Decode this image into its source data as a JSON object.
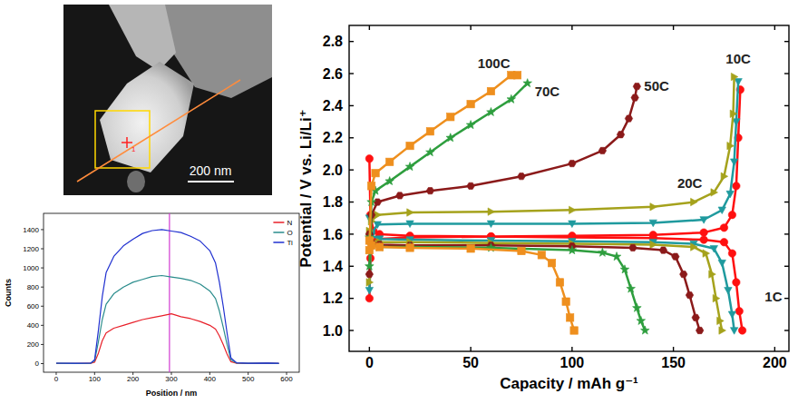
{
  "image": {
    "scale_bar": "200 nm",
    "marker": "1"
  },
  "chart_data": [
    {
      "type": "line",
      "x_label": "Position / nm",
      "y_label": "Counts",
      "xlim": [
        -33,
        633
      ],
      "ylim": [
        -90,
        1570
      ],
      "xticks": [
        0,
        100,
        200,
        300,
        400,
        500,
        600
      ],
      "yticks": [
        0,
        200,
        400,
        600,
        800,
        1000,
        1200,
        1400
      ],
      "legend": "top-right",
      "cursor": 295,
      "series": [
        {
          "name": "N",
          "color": "#e8202a",
          "line_style": "solid",
          "x": [
            0,
            50,
            90,
            100,
            110,
            120,
            130,
            150,
            175,
            200,
            225,
            250,
            275,
            300,
            325,
            350,
            375,
            400,
            415,
            425,
            435,
            445,
            455,
            470,
            500,
            550,
            580
          ],
          "values": [
            2,
            1,
            3,
            15,
            110,
            240,
            320,
            370,
            400,
            430,
            460,
            480,
            500,
            520,
            490,
            470,
            440,
            400,
            360,
            290,
            200,
            100,
            20,
            3,
            2,
            3,
            1
          ]
        },
        {
          "name": "O",
          "color": "#2a8c8c",
          "line_style": "solid",
          "x": [
            0,
            50,
            90,
            100,
            110,
            120,
            130,
            150,
            175,
            200,
            225,
            250,
            275,
            300,
            325,
            350,
            375,
            400,
            415,
            425,
            435,
            445,
            455,
            470,
            500,
            550,
            580
          ],
          "values": [
            3,
            2,
            4,
            30,
            230,
            460,
            620,
            730,
            800,
            850,
            880,
            910,
            920,
            905,
            890,
            870,
            830,
            760,
            680,
            550,
            380,
            200,
            40,
            5,
            3,
            4,
            2
          ]
        },
        {
          "name": "Ti",
          "color": "#2030d0",
          "line_style": "solid",
          "x": [
            0,
            50,
            90,
            100,
            110,
            120,
            130,
            150,
            175,
            200,
            225,
            250,
            275,
            300,
            325,
            350,
            375,
            400,
            415,
            425,
            435,
            445,
            455,
            470,
            500,
            550,
            580
          ],
          "values": [
            5,
            3,
            6,
            40,
            350,
            700,
            950,
            1120,
            1230,
            1300,
            1360,
            1390,
            1400,
            1385,
            1370,
            1330,
            1280,
            1180,
            1050,
            850,
            600,
            320,
            60,
            8,
            4,
            6,
            3
          ]
        }
      ]
    },
    {
      "type": "line",
      "x_label": "Capacity / mAh g⁻¹",
      "y_label": "Potential / V vs. Li/Li⁺",
      "xlim": [
        -10,
        207
      ],
      "ylim": [
        0.87,
        2.9
      ],
      "xticks": [
        0,
        50,
        100,
        150,
        200
      ],
      "yticks": [
        {
          "value": 1,
          "label": "1.0"
        },
        {
          "value": 1.2,
          "label": "1.2"
        },
        {
          "value": 1.4,
          "label": "1.4"
        },
        {
          "value": 1.6,
          "label": "1.6"
        },
        {
          "value": 1.8,
          "label": "1.8"
        },
        {
          "value": 2,
          "label": "2.0"
        },
        {
          "value": 2.2,
          "label": "2.2"
        },
        {
          "value": 2.4,
          "label": "2.4"
        },
        {
          "value": 2.6,
          "label": "2.6"
        },
        {
          "value": 2.8,
          "label": "2.8"
        }
      ],
      "series": [
        {
          "name": "1C",
          "color": "#ff1010",
          "marker": "circle",
          "x": [
            0,
            0.5,
            2,
            5,
            20,
            60,
            100,
            140,
            165,
            175,
            179,
            181,
            182.5,
            184,
            null,
            0,
            0.5,
            1.5,
            4,
            20,
            60,
            100,
            140,
            165,
            175,
            179,
            181,
            182,
            183
          ],
          "values": [
            2.07,
            1.72,
            1.62,
            1.6,
            1.59,
            1.585,
            1.58,
            1.575,
            1.565,
            1.55,
            1.48,
            1.3,
            1.12,
            1.0,
            null,
            1.2,
            1.45,
            1.54,
            1.57,
            1.58,
            1.585,
            1.59,
            1.595,
            1.61,
            1.64,
            1.72,
            1.9,
            2.2,
            2.5
          ]
        },
        {
          "name": "10C",
          "color": "#1f9a9e",
          "marker": "triangle-down",
          "x": [
            0,
            1,
            5,
            20,
            60,
            100,
            140,
            160,
            170,
            174,
            177,
            179,
            180,
            null,
            0,
            1,
            4,
            20,
            60,
            100,
            140,
            165,
            174,
            178,
            180,
            181,
            182
          ],
          "values": [
            1.7,
            1.59,
            1.57,
            1.565,
            1.56,
            1.555,
            1.55,
            1.54,
            1.51,
            1.42,
            1.25,
            1.1,
            1.0,
            null,
            1.25,
            1.6,
            1.66,
            1.665,
            1.665,
            1.665,
            1.67,
            1.69,
            1.75,
            1.85,
            2.05,
            2.3,
            2.55
          ]
        },
        {
          "name": "20C",
          "color": "#a5a21c",
          "marker": "triangle-right",
          "x": [
            0,
            1,
            5,
            20,
            60,
            100,
            140,
            160,
            166,
            169,
            171,
            173,
            174,
            null,
            0,
            1,
            4,
            20,
            60,
            100,
            140,
            160,
            170,
            175,
            178,
            179.5,
            180
          ],
          "values": [
            1.62,
            1.56,
            1.55,
            1.55,
            1.545,
            1.54,
            1.535,
            1.52,
            1.48,
            1.35,
            1.2,
            1.06,
            1.0,
            null,
            1.3,
            1.68,
            1.72,
            1.735,
            1.74,
            1.75,
            1.77,
            1.8,
            1.86,
            1.96,
            2.15,
            2.35,
            2.58
          ]
        },
        {
          "name": "50C",
          "color": "#8b1a1a",
          "marker": "hexagon",
          "x": [
            0,
            1,
            5,
            20,
            60,
            100,
            130,
            145,
            151,
            155,
            158,
            161,
            163,
            null,
            0,
            1,
            4,
            15,
            30,
            50,
            75,
            100,
            115,
            124,
            128,
            131,
            132
          ],
          "values": [
            1.6,
            1.55,
            1.535,
            1.53,
            1.53,
            1.525,
            1.515,
            1.5,
            1.46,
            1.35,
            1.22,
            1.08,
            1.0,
            null,
            1.35,
            1.72,
            1.8,
            1.84,
            1.87,
            1.9,
            1.96,
            2.04,
            2.12,
            2.22,
            2.32,
            2.45,
            2.52
          ]
        },
        {
          "name": "70C",
          "color": "#2e9e3e",
          "marker": "star",
          "x": [
            0,
            1,
            5,
            20,
            60,
            100,
            115,
            122,
            126,
            129,
            132,
            134,
            136,
            null,
            0,
            1,
            3,
            10,
            20,
            30,
            40,
            50,
            60,
            70,
            78
          ],
          "values": [
            1.58,
            1.53,
            1.52,
            1.52,
            1.515,
            1.5,
            1.485,
            1.46,
            1.38,
            1.26,
            1.14,
            1.06,
            1.0,
            null,
            1.4,
            1.8,
            1.87,
            1.93,
            2.02,
            2.11,
            2.2,
            2.28,
            2.36,
            2.44,
            2.54
          ]
        },
        {
          "name": "100C",
          "color": "#ee8f1e",
          "marker": "square",
          "x": [
            0,
            1,
            5,
            20,
            50,
            75,
            85,
            90,
            94,
            97,
            99,
            101,
            null,
            0,
            1,
            3,
            10,
            20,
            30,
            40,
            50,
            60,
            70,
            73
          ],
          "values": [
            1.56,
            1.53,
            1.52,
            1.515,
            1.51,
            1.495,
            1.47,
            1.42,
            1.3,
            1.18,
            1.08,
            1.0,
            null,
            1.5,
            1.9,
            1.98,
            2.05,
            2.15,
            2.24,
            2.33,
            2.41,
            2.49,
            2.59,
            2.59
          ]
        }
      ]
    }
  ]
}
